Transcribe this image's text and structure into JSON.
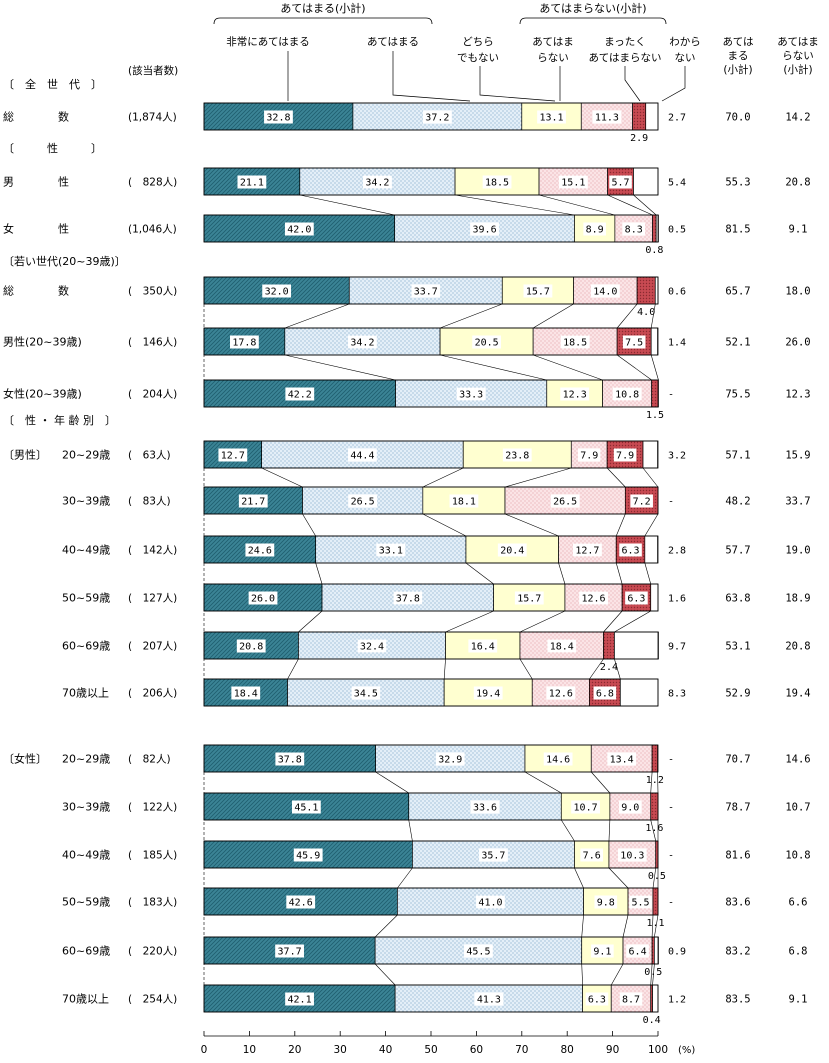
{
  "chart_data": {
    "type": "bar",
    "orientation": "horizontal",
    "stacked": true,
    "normalized": true,
    "xlim": [
      0,
      100
    ],
    "x_ticks": [
      "0",
      "10",
      "20",
      "30",
      "40",
      "50",
      "60",
      "70",
      "80",
      "90",
      "100"
    ],
    "x_unit": "(%)",
    "column_headers": {
      "group_agree": "あてはまる(小計)",
      "group_disagree": "あてはまらない(小計)",
      "n_header": "(該当者数)",
      "sum_agree": [
        "あては",
        "まる",
        "(小計)"
      ],
      "sum_disagree": [
        "あてはま",
        "らない",
        "(小計)"
      ]
    },
    "series": [
      {
        "key": "s1",
        "name": "非常にあてはまる",
        "color": "#3b8496"
      },
      {
        "key": "s2",
        "name": "あてはまる",
        "color": "#dbe9f4"
      },
      {
        "key": "s3",
        "name": "どちら でもない",
        "lines": [
          "どちら",
          "でもない"
        ],
        "color": "#ffffd0"
      },
      {
        "key": "s4",
        "name": "あてはま らない",
        "lines": [
          "あてはま",
          "らない"
        ],
        "color": "#f9dfe1"
      },
      {
        "key": "s5",
        "name": "まったく あてはまらない",
        "lines": [
          "まったく",
          "あてはまらない"
        ],
        "color": "#d8545c"
      },
      {
        "key": "s6",
        "name": "わから ない",
        "lines": [
          "わから",
          "ない"
        ],
        "color": "#ffffff"
      }
    ],
    "sections": {
      "all": "〔　全　世　代　〕",
      "sex": "〔　　　性　　　〕",
      "young": "〔若い世代(20~39歳)〕",
      "sexage": "〔　性 ・ 年 齢 別　〕"
    },
    "rows": [
      {
        "label": "総　　　　数",
        "n": "(1,874人)",
        "values": [
          32.8,
          37.2,
          13.1,
          11.3,
          2.9,
          2.7
        ],
        "labels": [
          "32.8",
          "37.2",
          "13.1",
          "11.3",
          "2.9",
          "2.7"
        ],
        "sum_agree": "70.0",
        "sum_disagree": "14.2"
      },
      {
        "label": "男　　　　性",
        "n": "(　828人)",
        "values": [
          21.1,
          34.2,
          18.5,
          15.1,
          5.7,
          5.4
        ],
        "labels": [
          "21.1",
          "34.2",
          "18.5",
          "15.1",
          "5.7",
          "5.4"
        ],
        "sum_agree": "55.3",
        "sum_disagree": "20.8"
      },
      {
        "label": "女　　　　性",
        "n": "(1,046人)",
        "values": [
          42.0,
          39.6,
          8.9,
          8.3,
          0.8,
          0.5
        ],
        "labels": [
          "42.0",
          "39.6",
          "8.9",
          "8.3",
          "0.8",
          "0.5"
        ],
        "sum_agree": "81.5",
        "sum_disagree": "9.1"
      },
      {
        "label": "総　　　　数",
        "n": "(　350人)",
        "values": [
          32.0,
          33.7,
          15.7,
          14.0,
          4.0,
          0.6
        ],
        "labels": [
          "32.0",
          "33.7",
          "15.7",
          "14.0",
          "4.0",
          "0.6"
        ],
        "sum_agree": "65.7",
        "sum_disagree": "18.0"
      },
      {
        "label": "男性(20~39歳)",
        "n": "(　146人)",
        "values": [
          17.8,
          34.2,
          20.5,
          18.5,
          7.5,
          1.4
        ],
        "labels": [
          "17.8",
          "34.2",
          "20.5",
          "18.5",
          "7.5",
          "1.4"
        ],
        "sum_agree": "52.1",
        "sum_disagree": "26.0"
      },
      {
        "label": "女性(20~39歳)",
        "n": "(　204人)",
        "values": [
          42.2,
          33.3,
          12.3,
          10.8,
          1.5,
          0
        ],
        "labels": [
          "42.2",
          "33.3",
          "12.3",
          "10.8",
          "1.5",
          "-"
        ],
        "sum_agree": "75.5",
        "sum_disagree": "12.3"
      },
      {
        "group": "〔男性〕",
        "label": "20~29歳",
        "n": "(　63人)",
        "values": [
          12.7,
          44.4,
          23.8,
          7.9,
          7.9,
          3.2
        ],
        "labels": [
          "12.7",
          "44.4",
          "23.8",
          "7.9",
          "7.9",
          "3.2"
        ],
        "sum_agree": "57.1",
        "sum_disagree": "15.9"
      },
      {
        "label": "30~39歳",
        "n": "(　83人)",
        "values": [
          21.7,
          26.5,
          18.1,
          26.5,
          7.2,
          0
        ],
        "labels": [
          "21.7",
          "26.5",
          "18.1",
          "26.5",
          "7.2",
          "-"
        ],
        "sum_agree": "48.2",
        "sum_disagree": "33.7"
      },
      {
        "label": "40~49歳",
        "n": "(　142人)",
        "values": [
          24.6,
          33.1,
          20.4,
          12.7,
          6.3,
          2.8
        ],
        "labels": [
          "24.6",
          "33.1",
          "20.4",
          "12.7",
          "6.3",
          "2.8"
        ],
        "sum_agree": "57.7",
        "sum_disagree": "19.0"
      },
      {
        "label": "50~59歳",
        "n": "(　127人)",
        "values": [
          26.0,
          37.8,
          15.7,
          12.6,
          6.3,
          1.6
        ],
        "labels": [
          "26.0",
          "37.8",
          "15.7",
          "12.6",
          "6.3",
          "1.6"
        ],
        "sum_agree": "63.8",
        "sum_disagree": "18.9"
      },
      {
        "label": "60~69歳",
        "n": "(　207人)",
        "values": [
          20.8,
          32.4,
          16.4,
          18.4,
          2.4,
          9.7
        ],
        "labels": [
          "20.8",
          "32.4",
          "16.4",
          "18.4",
          "2.4",
          "9.7"
        ],
        "sum_agree": "53.1",
        "sum_disagree": "20.8"
      },
      {
        "label": "70歳以上",
        "n": "(　206人)",
        "values": [
          18.4,
          34.5,
          19.4,
          12.6,
          6.8,
          8.3
        ],
        "labels": [
          "18.4",
          "34.5",
          "19.4",
          "12.6",
          "6.8",
          "8.3"
        ],
        "sum_agree": "52.9",
        "sum_disagree": "19.4"
      },
      {
        "group": "〔女性〕",
        "label": "20~29歳",
        "n": "(　82人)",
        "values": [
          37.8,
          32.9,
          14.6,
          13.4,
          1.2,
          0
        ],
        "labels": [
          "37.8",
          "32.9",
          "14.6",
          "13.4",
          "1.2",
          "-"
        ],
        "sum_agree": "70.7",
        "sum_disagree": "14.6"
      },
      {
        "label": "30~39歳",
        "n": "(　122人)",
        "values": [
          45.1,
          33.6,
          10.7,
          9.0,
          1.6,
          0
        ],
        "labels": [
          "45.1",
          "33.6",
          "10.7",
          "9.0",
          "1.6",
          "-"
        ],
        "sum_agree": "78.7",
        "sum_disagree": "10.7"
      },
      {
        "label": "40~49歳",
        "n": "(　185人)",
        "values": [
          45.9,
          35.7,
          7.6,
          10.3,
          0.5,
          0
        ],
        "labels": [
          "45.9",
          "35.7",
          "7.6",
          "10.3",
          "0.5",
          "-"
        ],
        "sum_agree": "81.6",
        "sum_disagree": "10.8"
      },
      {
        "label": "50~59歳",
        "n": "(　183人)",
        "values": [
          42.6,
          41.0,
          9.8,
          5.5,
          1.1,
          0
        ],
        "labels": [
          "42.6",
          "41.0",
          "9.8",
          "5.5",
          "1.1",
          "-"
        ],
        "sum_agree": "83.6",
        "sum_disagree": "6.6"
      },
      {
        "label": "60~69歳",
        "n": "(　220人)",
        "values": [
          37.7,
          45.5,
          9.1,
          6.4,
          0.5,
          0.9
        ],
        "labels": [
          "37.7",
          "45.5",
          "9.1",
          "6.4",
          "0.5",
          "0.9"
        ],
        "sum_agree": "83.2",
        "sum_disagree": "6.8"
      },
      {
        "label": "70歳以上",
        "n": "(　254人)",
        "values": [
          42.1,
          41.3,
          6.3,
          8.7,
          0.4,
          1.2
        ],
        "labels": [
          "42.1",
          "41.3",
          "6.3",
          "8.7",
          "0.4",
          "1.2"
        ],
        "sum_agree": "83.5",
        "sum_disagree": "9.1"
      }
    ]
  }
}
